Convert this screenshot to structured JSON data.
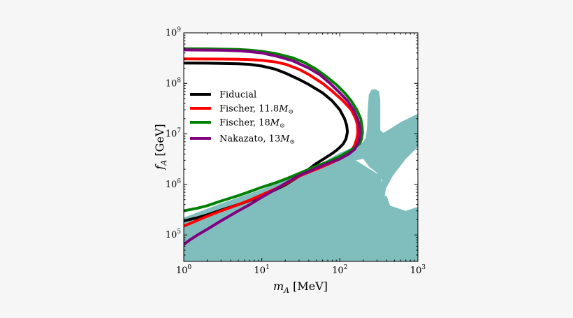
{
  "chart_data": {
    "type": "line",
    "title": "",
    "xlabel": "m_A  [MeV]",
    "ylabel": "f_A  [GeV]",
    "xscale": "log",
    "yscale": "log",
    "xlim": [
      1,
      1000
    ],
    "ylim": [
      30000,
      1000000000
    ],
    "x_tick_labels": [
      {
        "value": 1,
        "base": "10",
        "exp": "0"
      },
      {
        "value": 10,
        "base": "10",
        "exp": "1"
      },
      {
        "value": 100,
        "base": "10",
        "exp": "2"
      },
      {
        "value": 1000,
        "base": "10",
        "exp": "3"
      }
    ],
    "y_tick_labels": [
      {
        "value": 100000,
        "base": "10",
        "exp": "5"
      },
      {
        "value": 1000000,
        "base": "10",
        "exp": "6"
      },
      {
        "value": 10000000,
        "base": "10",
        "exp": "7"
      },
      {
        "value": 100000000,
        "base": "10",
        "exp": "8"
      },
      {
        "value": 1000000000,
        "base": "10",
        "exp": "9"
      }
    ],
    "grid": false,
    "legend_position": "center-left",
    "excluded_region": {
      "color": "#80bebe",
      "polygon": [
        [
          1,
          30000
        ],
        [
          1,
          220000
        ],
        [
          3,
          420000
        ],
        [
          10,
          800000
        ],
        [
          30,
          1600000
        ],
        [
          60,
          2700000
        ],
        [
          100,
          4200000
        ],
        [
          150,
          5500000
        ],
        [
          200,
          7000000
        ],
        [
          215,
          8500000
        ],
        [
          223,
          13000000
        ],
        [
          228,
          30000000
        ],
        [
          235,
          60000000
        ],
        [
          255,
          75000000
        ],
        [
          285,
          76000000
        ],
        [
          318,
          70000000
        ],
        [
          330,
          45000000
        ],
        [
          330,
          12000000
        ],
        [
          360,
          10500000
        ],
        [
          420,
          12000000
        ],
        [
          600,
          17000000
        ],
        [
          1000,
          25000000
        ],
        [
          1000,
          5500000
        ],
        [
          700,
          3200000
        ],
        [
          480,
          1500000
        ],
        [
          390,
          830000
        ],
        [
          375,
          590000
        ],
        [
          360,
          500000
        ],
        [
          320,
          470000
        ],
        [
          290,
          550000
        ],
        [
          278,
          640000
        ],
        [
          330,
          950000
        ],
        [
          350,
          1200000
        ],
        [
          300,
          1700000
        ],
        [
          240,
          2200000
        ],
        [
          200,
          3200000
        ],
        [
          160,
          3000000
        ],
        [
          330,
          1500000
        ],
        [
          380,
          590000
        ],
        [
          400,
          580000
        ],
        [
          440,
          380000
        ],
        [
          700,
          300000
        ],
        [
          1000,
          360000
        ],
        [
          1000,
          30000
        ]
      ]
    },
    "series": [
      {
        "name": "Fiducial",
        "label_main": "Fiducial",
        "label_sub": "",
        "color": "#000000",
        "points": [
          [
            1,
            190000
          ],
          [
            1.5,
            220000
          ],
          [
            2,
            250000
          ],
          [
            3,
            310000
          ],
          [
            5,
            400000
          ],
          [
            7,
            480000
          ],
          [
            10,
            600000
          ],
          [
            15,
            790000
          ],
          [
            20,
            980000
          ],
          [
            30,
            1450000
          ],
          [
            40,
            2000000
          ],
          [
            50,
            2600000
          ],
          [
            60,
            3100000
          ],
          [
            70,
            3600000
          ],
          [
            80,
            4100000
          ],
          [
            90,
            4700000
          ],
          [
            100,
            5400000
          ],
          [
            110,
            6300000
          ],
          [
            120,
            8000000
          ],
          [
            125,
            11000000
          ],
          [
            122,
            15000000
          ],
          [
            115,
            20000000
          ],
          [
            100,
            30000000
          ],
          [
            80,
            45000000
          ],
          [
            60,
            65000000
          ],
          [
            40,
            95000000
          ],
          [
            30,
            120000000
          ],
          [
            20,
            160000000
          ],
          [
            15,
            190000000
          ],
          [
            10,
            220000000
          ],
          [
            7,
            238000000
          ],
          [
            5,
            245000000
          ],
          [
            3,
            249000000
          ],
          [
            2,
            251000000
          ],
          [
            1,
            252000000
          ]
        ]
      },
      {
        "name": "Fischer, 11.8M_☉",
        "label_main": "Fischer, 11.8",
        "label_sub": "⊙",
        "color": "#ff0000",
        "points": [
          [
            1,
            150000
          ],
          [
            1.5,
            195000
          ],
          [
            2,
            235000
          ],
          [
            3,
            300000
          ],
          [
            5,
            400000
          ],
          [
            7,
            490000
          ],
          [
            10,
            620000
          ],
          [
            15,
            820000
          ],
          [
            20,
            1020000
          ],
          [
            30,
            1450000
          ],
          [
            40,
            1750000
          ],
          [
            50,
            2000000
          ],
          [
            70,
            2500000
          ],
          [
            100,
            3200000
          ],
          [
            120,
            3800000
          ],
          [
            140,
            4600000
          ],
          [
            155,
            6000000
          ],
          [
            165,
            8000000
          ],
          [
            170,
            10500000
          ],
          [
            168,
            15000000
          ],
          [
            160,
            20000000
          ],
          [
            140,
            30000000
          ],
          [
            110,
            45000000
          ],
          [
            80,
            70000000
          ],
          [
            60,
            100000000
          ],
          [
            40,
            150000000
          ],
          [
            30,
            190000000
          ],
          [
            20,
            240000000
          ],
          [
            15,
            265000000
          ],
          [
            10,
            285000000
          ],
          [
            7,
            295000000
          ],
          [
            5,
            300000000
          ],
          [
            3,
            303000000
          ],
          [
            1,
            305000000
          ]
        ]
      },
      {
        "name": "Fischer, 18M_☉",
        "label_main": "Fischer, 18",
        "label_sub": "⊙",
        "color": "#008000",
        "points": [
          [
            1,
            300000
          ],
          [
            1.5,
            340000
          ],
          [
            2,
            380000
          ],
          [
            3,
            470000
          ],
          [
            5,
            600000
          ],
          [
            7,
            720000
          ],
          [
            10,
            880000
          ],
          [
            15,
            1080000
          ],
          [
            20,
            1270000
          ],
          [
            30,
            1650000
          ],
          [
            50,
            2300000
          ],
          [
            70,
            2800000
          ],
          [
            100,
            3600000
          ],
          [
            130,
            4500000
          ],
          [
            160,
            5500000
          ],
          [
            180,
            6500000
          ],
          [
            190,
            8000000
          ],
          [
            195,
            10500000
          ],
          [
            193,
            14000000
          ],
          [
            185,
            20000000
          ],
          [
            165,
            30000000
          ],
          [
            140,
            45000000
          ],
          [
            115,
            65000000
          ],
          [
            90,
            95000000
          ],
          [
            70,
            130000000
          ],
          [
            50,
            190000000
          ],
          [
            35,
            260000000
          ],
          [
            25,
            320000000
          ],
          [
            15,
            390000000
          ],
          [
            10,
            430000000
          ],
          [
            7,
            455000000
          ],
          [
            5,
            468000000
          ],
          [
            3,
            478000000
          ],
          [
            2,
            482000000
          ],
          [
            1,
            485000000
          ]
        ]
      },
      {
        "name": "Nakazato, 13M_☉",
        "label_main": "Nakazato, 13",
        "label_sub": "⊙",
        "color": "#800080",
        "points": [
          [
            1,
            65000
          ],
          [
            1.2,
            80000
          ],
          [
            1.5,
            100000
          ],
          [
            2,
            130000
          ],
          [
            3,
            190000
          ],
          [
            5,
            300000
          ],
          [
            7,
            400000
          ],
          [
            10,
            560000
          ],
          [
            15,
            800000
          ],
          [
            20,
            1050000
          ],
          [
            30,
            1500000
          ],
          [
            40,
            1800000
          ],
          [
            50,
            2100000
          ],
          [
            70,
            2600000
          ],
          [
            100,
            3200000
          ],
          [
            130,
            4000000
          ],
          [
            155,
            5000000
          ],
          [
            170,
            6500000
          ],
          [
            180,
            8500000
          ],
          [
            182,
            11000000
          ],
          [
            178,
            15000000
          ],
          [
            168,
            20000000
          ],
          [
            150,
            30000000
          ],
          [
            125,
            45000000
          ],
          [
            100,
            65000000
          ],
          [
            75,
            100000000
          ],
          [
            55,
            150000000
          ],
          [
            40,
            200000000
          ],
          [
            25,
            280000000
          ],
          [
            15,
            350000000
          ],
          [
            10,
            400000000
          ],
          [
            7,
            425000000
          ],
          [
            5,
            440000000
          ],
          [
            3,
            452000000
          ],
          [
            1,
            460000000
          ]
        ]
      }
    ]
  }
}
